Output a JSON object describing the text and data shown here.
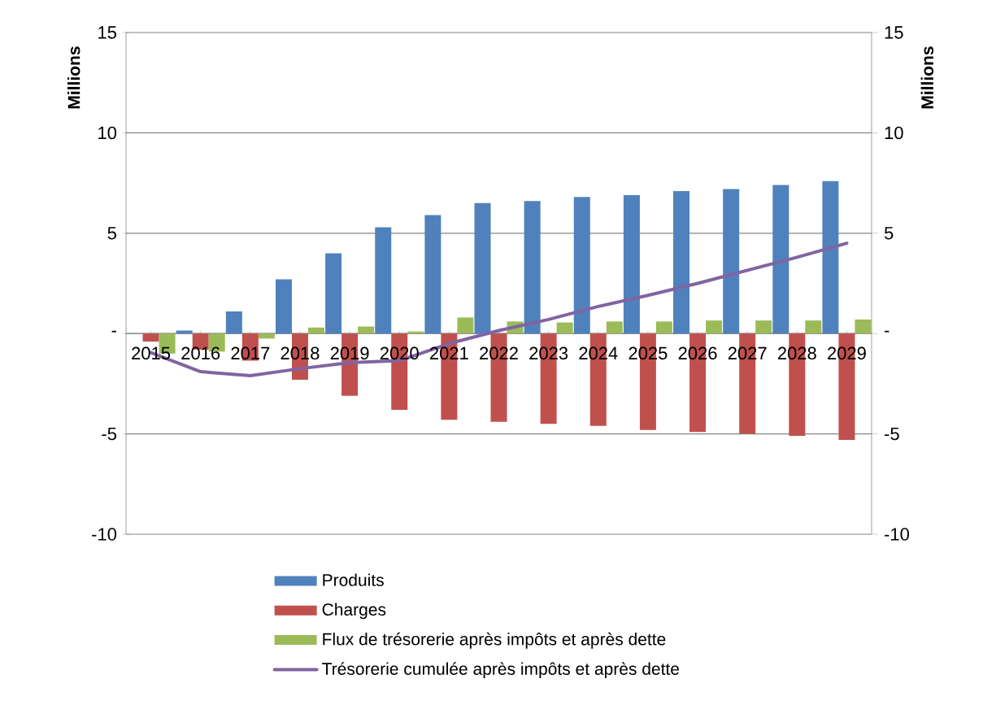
{
  "chart_data": {
    "type": "bar",
    "categories": [
      "2015",
      "2016",
      "2017",
      "2018",
      "2019",
      "2020",
      "2021",
      "2022",
      "2023",
      "2024",
      "2025",
      "2026",
      "2027",
      "2028",
      "2029"
    ],
    "series": [
      {
        "name": "Produits",
        "color": "#4f81bd",
        "values": [
          0,
          0.15,
          1.1,
          2.7,
          4.0,
          5.3,
          5.9,
          6.5,
          6.6,
          6.8,
          6.9,
          7.1,
          7.2,
          7.4,
          7.6
        ]
      },
      {
        "name": "Charges",
        "color": "#c0504d",
        "values": [
          -0.4,
          -0.8,
          -1.35,
          -2.3,
          -3.1,
          -3.8,
          -4.3,
          -4.4,
          -4.5,
          -4.6,
          -4.8,
          -4.9,
          -5.0,
          -5.1,
          -5.3
        ]
      },
      {
        "name": "Flux de trésorerie après impôts et après dette",
        "color": "#9bbb59",
        "values": [
          -1.0,
          -0.9,
          -0.25,
          0.3,
          0.35,
          0.1,
          0.8,
          0.6,
          0.55,
          0.6,
          0.6,
          0.65,
          0.65,
          0.65,
          0.7
        ]
      },
      {
        "name": "Trésorerie cumulée après impôts et après dette",
        "type": "line",
        "color": "#8064a2",
        "values": [
          -0.95,
          -1.9,
          -2.1,
          -1.75,
          -1.45,
          -1.35,
          -0.5,
          0.15,
          0.7,
          1.35,
          1.9,
          2.5,
          3.15,
          3.8,
          4.5
        ]
      }
    ],
    "ylabel": "Millions",
    "y2label": "Millions",
    "ylim": [
      -10,
      15
    ],
    "yticks": [
      -10,
      -5,
      {
        "value": 0,
        "label": "-"
      },
      5,
      10,
      15
    ],
    "y2lim": [
      -10,
      15
    ],
    "y2ticks": [
      -10,
      -5,
      {
        "value": 0,
        "label": "-"
      },
      5,
      10,
      15
    ],
    "grid": "y",
    "legend": "bottom"
  }
}
